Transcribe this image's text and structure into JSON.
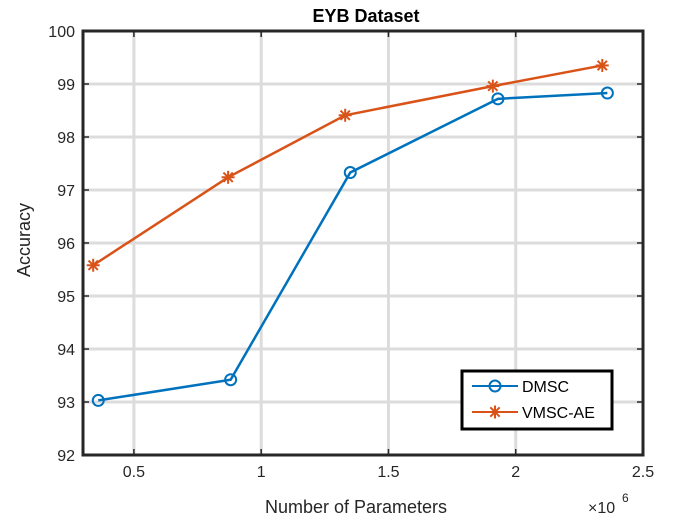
{
  "chart_data": {
    "type": "line",
    "title": "EYB Dataset",
    "xlabel": "Number of Parameters",
    "ylabel": "Accuracy",
    "x_exponent_label": "×10",
    "x_exponent_power": "6",
    "xlim": [
      0.3,
      2.5
    ],
    "ylim": [
      92,
      100
    ],
    "xticks": [
      0.5,
      1,
      1.5,
      2,
      2.5
    ],
    "xtick_labels": [
      "0.5",
      "1",
      "1.5",
      "2",
      "2.5"
    ],
    "yticks": [
      92,
      93,
      94,
      95,
      96,
      97,
      98,
      99,
      100
    ],
    "ytick_labels": [
      "92",
      "93",
      "94",
      "95",
      "96",
      "97",
      "98",
      "99",
      "100"
    ],
    "grid": true,
    "legend_position": "bottom-right",
    "series": [
      {
        "name": "DMSC",
        "color": "#0072BD",
        "marker": "circle",
        "x": [
          0.36,
          0.88,
          1.35,
          1.93,
          2.36
        ],
        "y": [
          93.03,
          93.42,
          97.33,
          98.72,
          98.83
        ]
      },
      {
        "name": "VMSC-AE",
        "color": "#D95319",
        "marker": "asterisk",
        "x": [
          0.34,
          0.87,
          1.33,
          1.91,
          2.34
        ],
        "y": [
          95.58,
          97.24,
          98.41,
          98.96,
          99.35
        ]
      }
    ]
  }
}
